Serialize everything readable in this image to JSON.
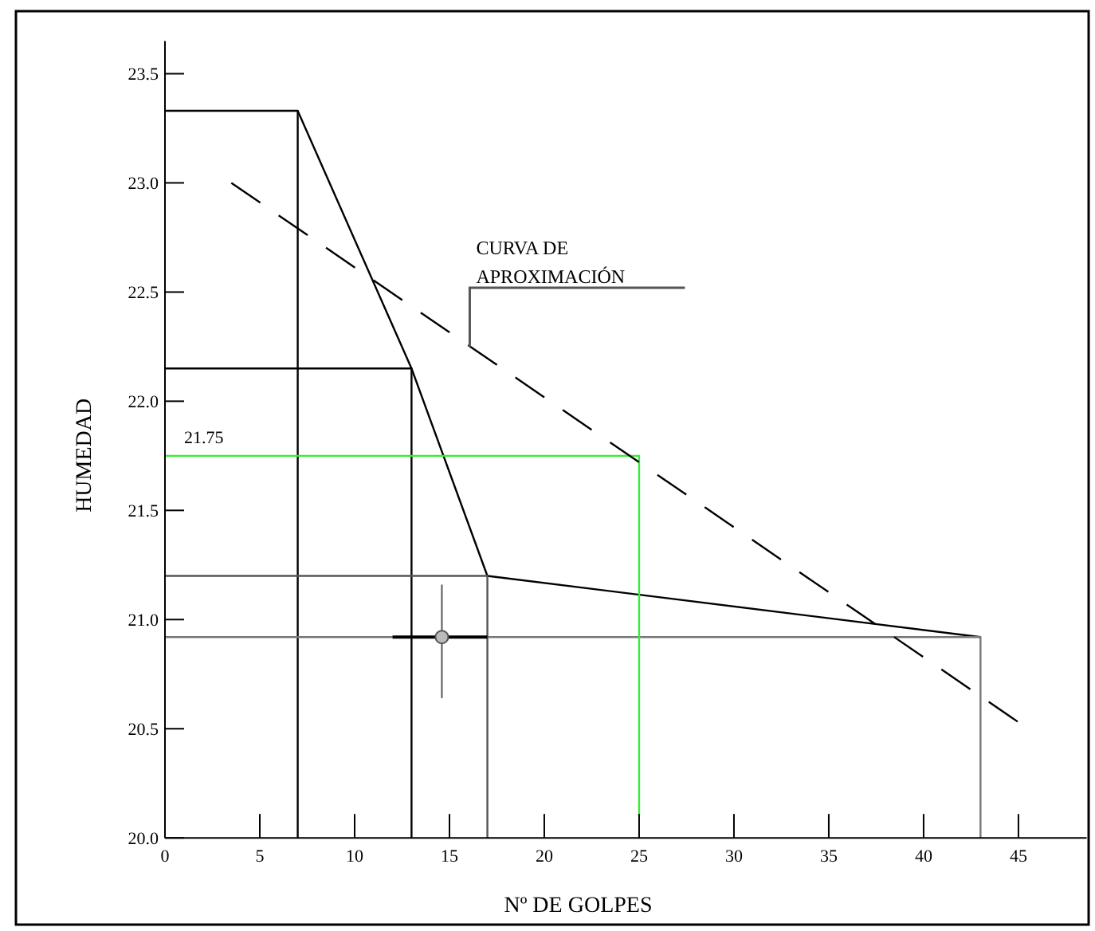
{
  "chart_data": {
    "type": "line",
    "xlabel": "Nº DE GOLPES",
    "ylabel": "HUMEDAD",
    "xlim": [
      0,
      48.6
    ],
    "ylim": [
      20,
      23.65
    ],
    "xticks": [
      0,
      5,
      10,
      15,
      20,
      25,
      30,
      35,
      40,
      45
    ],
    "yticks": [
      {
        "value": 20,
        "label": "20.0"
      },
      {
        "value": 20.5,
        "label": "20.5"
      },
      {
        "value": 21,
        "label": "21.0"
      },
      {
        "value": 21.5,
        "label": "21.5"
      },
      {
        "value": 22,
        "label": "22.0"
      },
      {
        "value": 22.5,
        "label": "22.5"
      },
      {
        "value": 23,
        "label": "23.0"
      },
      {
        "value": 23.5,
        "label": "23.5"
      }
    ],
    "grid": false,
    "series": [
      {
        "color": "#000000",
        "x": [
          7,
          13,
          17,
          43
        ],
        "values": [
          23.33,
          22.15,
          21.2,
          20.92
        ]
      },
      {
        "color": "#000000",
        "x": [
          0,
          7,
          7
        ],
        "values": [
          23.33,
          23.33,
          20
        ]
      },
      {
        "color": "#000000",
        "x": [
          0,
          13,
          13
        ],
        "values": [
          22.15,
          22.15,
          20
        ]
      },
      {
        "color": "#555555",
        "x": [
          0,
          17,
          17
        ],
        "values": [
          21.2,
          21.2,
          20
        ]
      },
      {
        "color": "#777777",
        "x": [
          0,
          43,
          43
        ],
        "values": [
          20.92,
          20.92,
          20
        ]
      },
      {
        "color": "#33ee33",
        "x": [
          0,
          25,
          25
        ],
        "values": [
          21.75,
          21.75,
          20.1
        ]
      },
      {
        "color": "#000000",
        "line_style": "dashed",
        "x": [
          3.5,
          45
        ],
        "values": [
          23.0,
          20.53
        ]
      },
      {
        "type": "scatter",
        "color": "#555555",
        "marker": "circle",
        "x": [
          14.6
        ],
        "values": [
          20.92
        ],
        "errors": [
          [
            20.64,
            21.16
          ]
        ],
        "xerrors": [
          [
            12,
            17
          ]
        ]
      }
    ],
    "annotations": [
      {
        "text": "21.75",
        "x": 0,
        "y": 21.75
      },
      {
        "text": "CURVA DE APROXIMACIÓN",
        "x": 16.07,
        "y": 22.25
      }
    ]
  }
}
